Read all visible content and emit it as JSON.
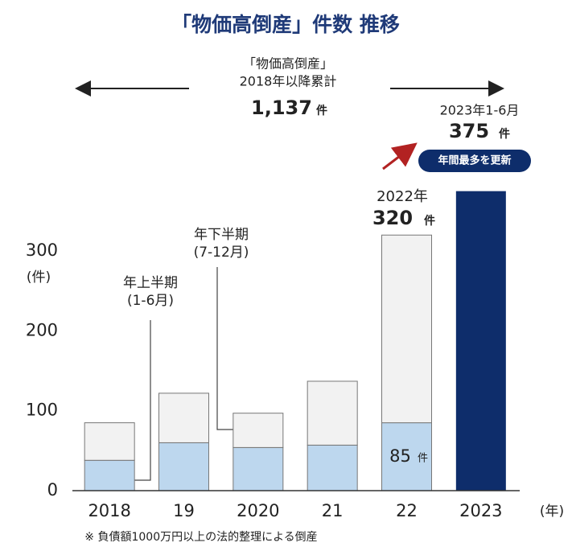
{
  "chart_data": {
    "type": "stacked_bar",
    "title": "「物価高倒産」件数 推移",
    "categories": [
      "2018",
      "19",
      "2020",
      "21",
      "22",
      "2023"
    ],
    "series": [
      {
        "name": "年上半期",
        "period": "(1-6月)",
        "color": "#bdd7ee",
        "point_colors": [
          "#bdd7ee",
          "#bdd7ee",
          "#bdd7ee",
          "#bdd7ee",
          "#bdd7ee",
          "#0e2d6b"
        ],
        "values": [
          38,
          60,
          54,
          57,
          85,
          375
        ]
      },
      {
        "name": "年下半期",
        "period": "(7-12月)",
        "color": "#f2f2f2",
        "values": [
          47,
          62,
          43,
          80,
          235,
          null
        ]
      }
    ],
    "ylim": [
      0,
      380
    ],
    "yticks": [
      0,
      100,
      200,
      300
    ],
    "y_label": "(件)",
    "x_label": "(年)",
    "annotations": {
      "cumulative_title": "「物価高倒産」",
      "cumulative_period": "2018年以降累計",
      "cumulative_value": "1,137",
      "unit": "件",
      "latest_period": "2023年1-6月",
      "badge": "年間最多を更新",
      "peak_year": "2022年",
      "peak_total": "320"
    },
    "footnote": "※ 負債額1000万円以上の法的整理による倒産"
  }
}
